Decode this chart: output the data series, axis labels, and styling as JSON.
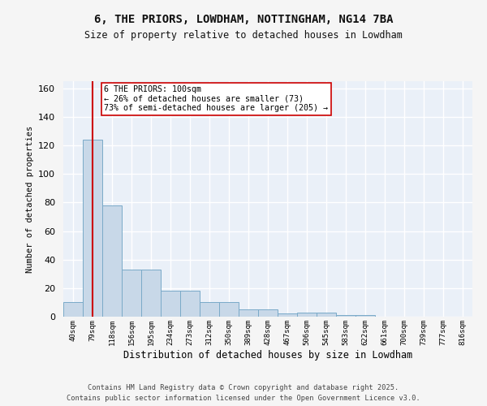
{
  "title1": "6, THE PRIORS, LOWDHAM, NOTTINGHAM, NG14 7BA",
  "title2": "Size of property relative to detached houses in Lowdham",
  "xlabel": "Distribution of detached houses by size in Lowdham",
  "ylabel": "Number of detached properties",
  "bar_labels": [
    "40sqm",
    "79sqm",
    "118sqm",
    "156sqm",
    "195sqm",
    "234sqm",
    "273sqm",
    "312sqm",
    "350sqm",
    "389sqm",
    "428sqm",
    "467sqm",
    "506sqm",
    "545sqm",
    "583sqm",
    "622sqm",
    "661sqm",
    "700sqm",
    "739sqm",
    "777sqm",
    "816sqm"
  ],
  "bar_values": [
    10,
    124,
    78,
    33,
    33,
    18,
    18,
    10,
    10,
    5,
    5,
    2,
    3,
    3,
    1,
    1,
    0,
    0,
    0,
    0,
    0
  ],
  "bar_color": "#c8d8e8",
  "bar_edge_color": "#7aaac8",
  "vline_x": 1.5,
  "vline_color": "#cc0000",
  "annotation_text": "6 THE PRIORS: 100sqm\n← 26% of detached houses are smaller (73)\n73% of semi-detached houses are larger (205) →",
  "annotation_box_color": "#ffffff",
  "annotation_border_color": "#cc0000",
  "ylim": [
    0,
    165
  ],
  "yticks": [
    0,
    20,
    40,
    60,
    80,
    100,
    120,
    140,
    160
  ],
  "background_color": "#eaf0f8",
  "grid_color": "#ffffff",
  "footer1": "Contains HM Land Registry data © Crown copyright and database right 2025.",
  "footer2": "Contains public sector information licensed under the Open Government Licence v3.0."
}
